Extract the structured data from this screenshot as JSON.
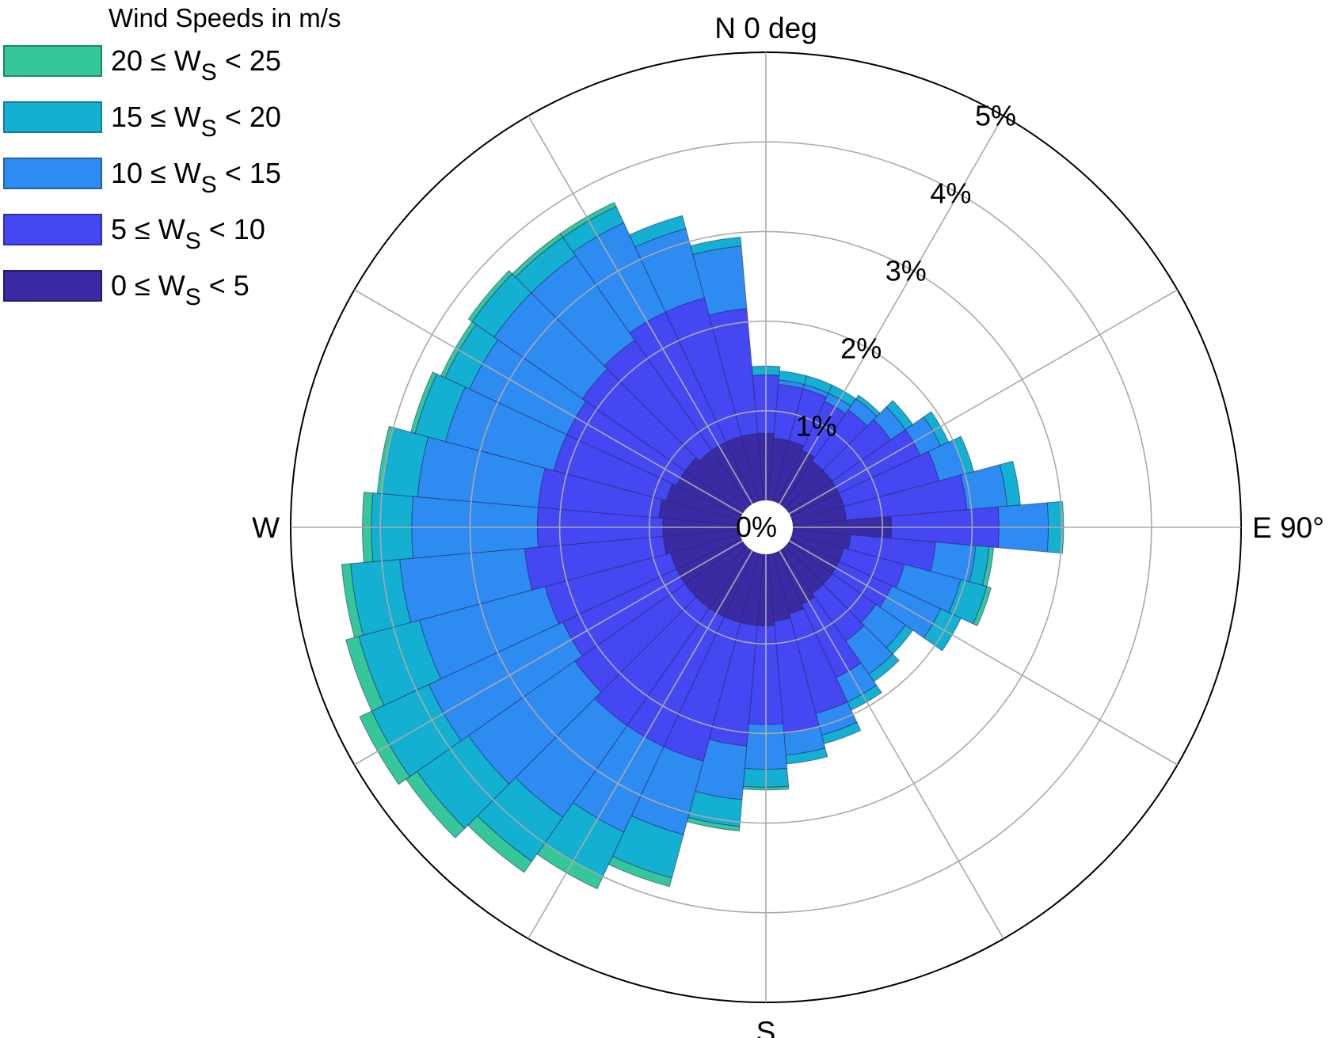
{
  "chart_data": {
    "type": "polar-stacked-bar",
    "title": "",
    "legend": {
      "title": "Wind Speeds in m/s",
      "placement": "top-left",
      "entries": [
        {
          "lower": "20",
          "upper": "25",
          "color": "#35c79a"
        },
        {
          "lower": "15",
          "upper": "20",
          "color": "#14b0d2"
        },
        {
          "lower": "10",
          "upper": "15",
          "color": "#2e8bf2"
        },
        {
          "lower": "5",
          "upper": "10",
          "color": "#4447f2"
        },
        {
          "lower": "0",
          "upper": "5",
          "color": "#3a2ba4"
        }
      ],
      "symbol_var": "W",
      "symbol_sub": "S",
      "leq": "≤",
      "lt": "<"
    },
    "direction_labels": {
      "north": "N 0 deg",
      "east": "E 90°",
      "south": "S",
      "west": "W"
    },
    "radial_ticks": [
      {
        "value": 0,
        "label": "0%"
      },
      {
        "value": 1,
        "label": "1%"
      },
      {
        "value": 2,
        "label": "2%"
      },
      {
        "value": 3,
        "label": "3%"
      },
      {
        "value": 4,
        "label": "4%"
      },
      {
        "value": 5,
        "label": "5%"
      }
    ],
    "radial_range": [
      0,
      5
    ],
    "angular_gridline_step_deg": 30,
    "sector_width_deg": 10,
    "directions_deg": [
      0,
      10,
      20,
      30,
      40,
      50,
      60,
      70,
      80,
      90,
      100,
      110,
      120,
      130,
      140,
      150,
      160,
      170,
      180,
      190,
      200,
      210,
      220,
      230,
      240,
      250,
      260,
      270,
      280,
      290,
      300,
      310,
      320,
      330,
      340,
      350
    ],
    "series": [
      {
        "name": "0 ≤ WS < 5",
        "values": [
          0.75,
          0.7,
          0.7,
          0.65,
          0.6,
          0.6,
          0.6,
          0.6,
          0.6,
          1.1,
          0.65,
          0.6,
          0.6,
          0.6,
          0.6,
          0.65,
          0.7,
          0.75,
          0.8,
          0.8,
          0.8,
          0.8,
          0.8,
          0.8,
          0.8,
          0.8,
          0.85,
          0.85,
          0.9,
          0.85,
          0.8,
          0.8,
          0.75,
          0.75,
          0.75,
          0.75
        ]
      },
      {
        "name": "5 ≤ WS < 10",
        "values": [
          0.65,
          0.6,
          0.6,
          0.6,
          0.7,
          0.8,
          1.0,
          1.1,
          1.35,
          1.2,
          0.95,
          0.7,
          0.65,
          0.6,
          0.65,
          0.9,
          1.15,
          1.25,
          1.1,
          1.35,
          1.6,
          1.6,
          1.6,
          1.5,
          1.4,
          1.45,
          1.55,
          1.4,
          1.35,
          1.3,
          1.35,
          1.4,
          1.5,
          1.6,
          1.6,
          1.4
        ]
      },
      {
        "name": "10 ≤ WS < 15",
        "values": [
          0.0,
          0.05,
          0.05,
          0.1,
          0.15,
          0.2,
          0.25,
          0.3,
          0.45,
          0.55,
          0.45,
          0.65,
          0.6,
          0.4,
          0.45,
          0.3,
          0.25,
          0.25,
          0.5,
          0.6,
          0.85,
          1.05,
          1.25,
          1.45,
          1.65,
          1.45,
          1.4,
          1.4,
          1.35,
          1.25,
          1.2,
          1.2,
          1.15,
          1.1,
          0.8,
          0.7
        ]
      },
      {
        "name": "15 ≤ WS < 20",
        "values": [
          0.1,
          0.1,
          0.1,
          0.1,
          0.05,
          0.1,
          0.1,
          0.1,
          0.15,
          0.15,
          0.15,
          0.3,
          0.25,
          0.1,
          0.1,
          0.1,
          0.1,
          0.1,
          0.2,
          0.3,
          0.5,
          0.55,
          0.6,
          0.7,
          0.7,
          0.7,
          0.55,
          0.45,
          0.4,
          0.35,
          0.3,
          0.3,
          0.25,
          0.2,
          0.15,
          0.1
        ]
      },
      {
        "name": "20 ≤ WS < 25",
        "values": [
          0,
          0,
          0,
          0,
          0,
          0,
          0,
          0,
          0,
          0.02,
          0.05,
          0.05,
          0,
          0,
          0,
          0,
          0,
          0,
          0.03,
          0.05,
          0.1,
          0.15,
          0.15,
          0.15,
          0.15,
          0.15,
          0.1,
          0.1,
          0.05,
          0.05,
          0.05,
          0.05,
          0.05,
          0.05,
          0,
          0
        ]
      }
    ]
  }
}
